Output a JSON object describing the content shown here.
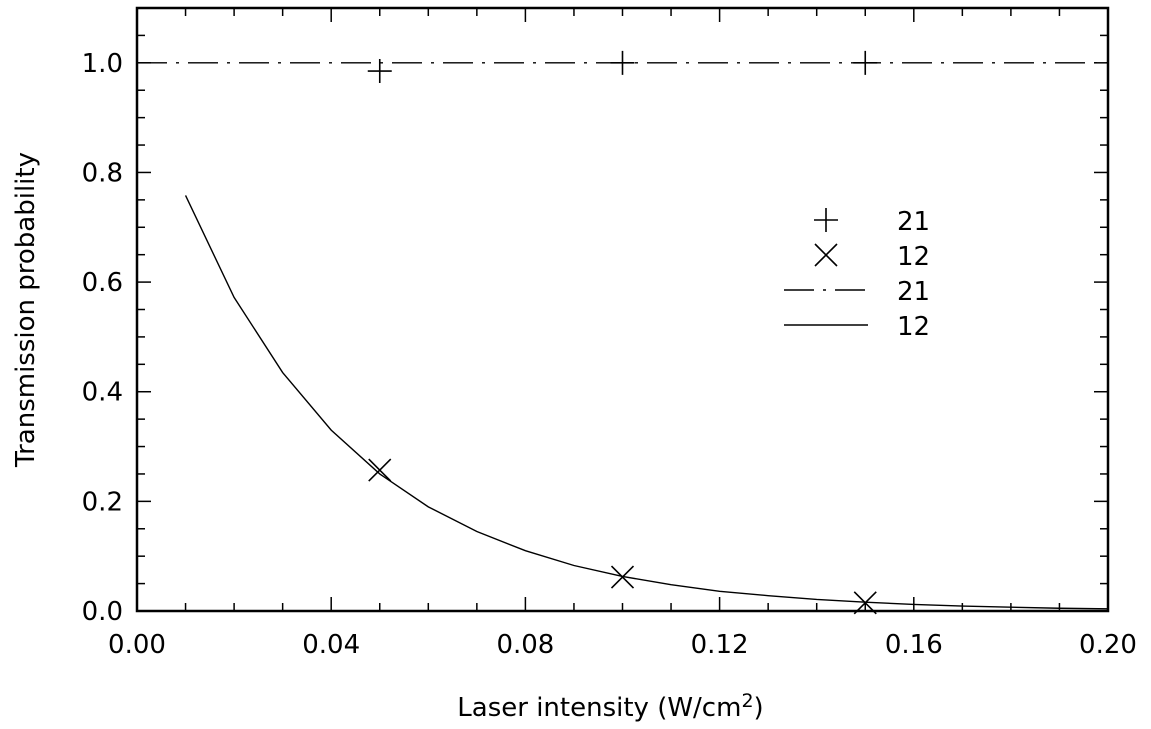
{
  "chart_data": {
    "type": "line",
    "title": "",
    "xlabel": "Laser intensity (W/cm",
    "xlabel_superscript": "2",
    "xlabel_suffix": ")",
    "ylabel": "Transmission probability",
    "xlim": [
      0.0,
      0.2
    ],
    "ylim": [
      0.0,
      1.1
    ],
    "xticks": [
      0.0,
      0.04,
      0.08,
      0.12,
      0.16,
      0.2
    ],
    "xtick_labels": [
      "0.00",
      "0.04",
      "0.08",
      "0.12",
      "0.16",
      "0.20"
    ],
    "yticks": [
      0.0,
      0.2,
      0.4,
      0.6,
      0.8,
      1.0
    ],
    "ytick_labels": [
      "0.0",
      "0.2",
      "0.4",
      "0.6",
      "0.8",
      "1.0"
    ],
    "grid": false,
    "legend_position": "right-center",
    "series": [
      {
        "name": "21",
        "kind": "markers",
        "marker": "plus",
        "x": [
          0.05,
          0.1,
          0.15
        ],
        "y": [
          0.985,
          1.0,
          1.0
        ]
      },
      {
        "name": "12",
        "kind": "markers",
        "marker": "cross",
        "x": [
          0.05,
          0.1,
          0.15
        ],
        "y": [
          0.257,
          0.062,
          0.015
        ]
      },
      {
        "name": "21",
        "kind": "line",
        "dash": "dash-dot",
        "x": [
          0.0,
          0.2
        ],
        "y": [
          1.0,
          1.0
        ]
      },
      {
        "name": "12",
        "kind": "line",
        "dash": "solid",
        "x": [
          0.01,
          0.02,
          0.03,
          0.04,
          0.05,
          0.06,
          0.07,
          0.08,
          0.09,
          0.1,
          0.11,
          0.12,
          0.13,
          0.14,
          0.15,
          0.16,
          0.17,
          0.18,
          0.19,
          0.2
        ],
        "y": [
          0.758,
          0.572,
          0.435,
          0.33,
          0.25,
          0.19,
          0.145,
          0.11,
          0.083,
          0.063,
          0.048,
          0.036,
          0.028,
          0.021,
          0.016,
          0.012,
          0.009,
          0.007,
          0.005,
          0.004
        ]
      }
    ]
  }
}
